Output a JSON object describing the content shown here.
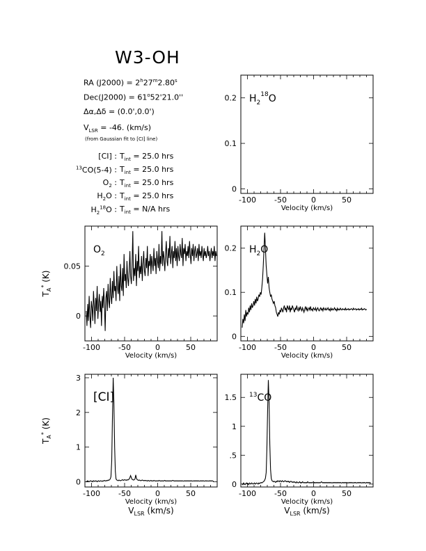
{
  "header": {
    "title": "W3-OH",
    "ra_label": "RA (J2000) = ",
    "ra_h": "2",
    "ra_m": "27",
    "ra_s": "2.80",
    "dec_label": "Dec(J2000) = ",
    "dec_deg": "61",
    "dec_rest": "52'21.0''",
    "offset_label": "Δα,Δδ = (0.0',0.0')",
    "vlsr_sym": "V",
    "vlsr_sub": "LSR",
    "vlsr_text": " = -46. (km/s)",
    "vlsr_note": "(from Gaussian fit to [CI] line)",
    "tint_rows": [
      {
        "line": "[CI]",
        "pre": "",
        "sup": "",
        "post": "",
        "sub": "",
        "value": "25.0 hrs"
      },
      {
        "line": "CO(5-4)",
        "pre": "",
        "sup": "13",
        "post": "",
        "sub": "",
        "value": "25.0 hrs"
      },
      {
        "line": "O",
        "pre": "",
        "sup": "",
        "post": "",
        "sub": "2",
        "value": "25.0 hrs"
      },
      {
        "line": "H",
        "pre": "",
        "sup": "",
        "post": "O",
        "sub": "2",
        "value": "25.0 hrs"
      },
      {
        "line": "H",
        "pre": "",
        "sup": "18",
        "post": "O",
        "sub": "2",
        "value": "N/A hrs"
      }
    ],
    "tint_sym": "T",
    "tint_sub": "int"
  },
  "chart_data": [
    {
      "id": "h218o",
      "type": "line",
      "label": "H218O",
      "xlabel": "Velocity (km/s)",
      "ylabel": "",
      "xlim": [
        -110,
        90
      ],
      "ylim": [
        -0.01,
        0.25
      ],
      "xticks": [
        -100,
        -50,
        0,
        50
      ],
      "yticks": [
        0,
        0.1,
        0.2
      ],
      "ytick_labels": [
        "0",
        "0.1",
        "0.2"
      ],
      "series": []
    },
    {
      "id": "o2",
      "type": "line",
      "label": "O2",
      "xlabel": "Velocity (km/s)",
      "ylabel": "TA* (K)",
      "xlim": [
        -110,
        90
      ],
      "ylim": [
        -0.025,
        0.09
      ],
      "xticks": [
        -100,
        -50,
        0,
        50
      ],
      "yticks": [
        0,
        0.05
      ],
      "ytick_labels": [
        "0",
        "0.05"
      ],
      "series": [
        {
          "x_start": -108,
          "x_step": 1.1,
          "values": [
            0.005,
            -0.01,
            0.012,
            -0.005,
            0.02,
            0.0,
            -0.012,
            0.015,
            0.008,
            -0.005,
            0.025,
            0.01,
            -0.008,
            0.018,
            0.005,
            0.03,
            -0.003,
            0.012,
            0.022,
            0.004,
            0.015,
            -0.01,
            0.02,
            0.008,
            0.028,
            0.012,
            -0.015,
            0.018,
            0.025,
            0.005,
            0.032,
            0.015,
            0.008,
            0.038,
            0.02,
            0.012,
            0.035,
            0.018,
            0.045,
            0.025,
            0.03,
            0.015,
            0.05,
            0.028,
            0.022,
            0.04,
            0.015,
            0.052,
            0.03,
            0.025,
            0.048,
            0.02,
            0.062,
            0.035,
            0.042,
            0.028,
            0.055,
            0.038,
            0.03,
            0.045,
            0.065,
            0.04,
            0.032,
            0.05,
            0.085,
            0.035,
            0.048,
            0.04,
            0.062,
            0.03,
            0.055,
            0.045,
            0.07,
            0.038,
            0.05,
            0.042,
            0.06,
            0.035,
            0.052,
            0.065,
            0.045,
            0.04,
            0.058,
            0.048,
            0.07,
            0.04,
            0.055,
            0.05,
            0.062,
            0.042,
            0.06,
            0.052,
            0.045,
            0.068,
            0.05,
            0.058,
            0.042,
            0.065,
            0.055,
            0.048,
            0.072,
            0.045,
            0.06,
            0.052,
            0.085,
            0.05,
            0.065,
            0.058,
            0.045,
            0.062,
            0.075,
            0.055,
            0.05,
            0.068,
            0.058,
            0.08,
            0.052,
            0.062,
            0.07,
            0.048,
            0.065,
            0.058,
            0.075,
            0.055,
            0.068,
            0.05,
            0.07,
            0.06,
            0.055,
            0.072,
            0.062,
            0.058,
            0.078,
            0.05,
            0.068,
            0.062,
            0.072,
            0.055,
            0.065,
            0.06,
            0.07,
            0.058,
            0.075,
            0.062,
            0.052,
            0.068,
            0.06,
            0.072,
            0.055,
            0.065,
            0.07,
            0.058,
            0.062,
            0.068,
            0.055,
            0.072,
            0.06,
            0.065,
            0.058,
            0.07,
            0.062,
            0.055,
            0.068,
            0.06,
            0.065,
            0.058,
            0.062,
            0.07,
            0.06,
            0.065,
            0.055,
            0.062,
            0.068,
            0.058,
            0.065,
            0.06,
            0.07,
            0.055,
            0.065,
            0.06
          ]
        }
      ]
    },
    {
      "id": "h2o",
      "type": "line",
      "label": "H2O",
      "xlabel": "Velocity (km/s)",
      "ylabel": "",
      "xlim": [
        -110,
        90
      ],
      "ylim": [
        -0.01,
        0.25
      ],
      "xticks": [
        -100,
        -50,
        0,
        50
      ],
      "yticks": [
        0,
        0.1,
        0.2
      ],
      "ytick_labels": [
        "0",
        "0.1",
        "0.2"
      ],
      "series": [
        {
          "x_start": -108,
          "x_step": 1.1,
          "values": [
            0.02,
            0.04,
            0.03,
            0.05,
            0.035,
            0.06,
            0.045,
            0.055,
            0.05,
            0.065,
            0.055,
            0.07,
            0.06,
            0.075,
            0.065,
            0.07,
            0.08,
            0.07,
            0.085,
            0.075,
            0.09,
            0.08,
            0.085,
            0.095,
            0.09,
            0.1,
            0.095,
            0.11,
            0.13,
            0.16,
            0.2,
            0.235,
            0.2,
            0.16,
            0.14,
            0.12,
            0.135,
            0.11,
            0.1,
            0.09,
            0.095,
            0.085,
            0.08,
            0.075,
            0.08,
            0.07,
            0.065,
            0.055,
            0.05,
            0.045,
            0.055,
            0.05,
            0.06,
            0.055,
            0.065,
            0.06,
            0.055,
            0.065,
            0.07,
            0.06,
            0.065,
            0.055,
            0.07,
            0.065,
            0.06,
            0.07,
            0.055,
            0.065,
            0.06,
            0.07,
            0.065,
            0.06,
            0.055,
            0.065,
            0.06,
            0.07,
            0.062,
            0.058,
            0.065,
            0.06,
            0.068,
            0.062,
            0.058,
            0.065,
            0.06,
            0.055,
            0.062,
            0.068,
            0.06,
            0.065,
            0.058,
            0.062,
            0.065,
            0.06,
            0.068,
            0.06,
            0.062,
            0.058,
            0.065,
            0.062,
            0.06,
            0.065,
            0.058,
            0.062,
            0.065,
            0.06,
            0.058,
            0.062,
            0.065,
            0.06,
            0.063,
            0.058,
            0.065,
            0.062,
            0.06,
            0.064,
            0.06,
            0.062,
            0.065,
            0.06,
            0.062,
            0.058,
            0.064,
            0.06,
            0.063,
            0.06,
            0.062,
            0.065,
            0.06,
            0.062,
            0.058,
            0.064,
            0.06,
            0.062,
            0.06,
            0.064,
            0.061,
            0.06,
            0.063,
            0.061,
            0.062,
            0.06,
            0.064,
            0.06,
            0.062,
            0.061,
            0.063,
            0.06,
            0.062,
            0.061,
            0.063,
            0.062,
            0.06,
            0.064,
            0.061,
            0.062,
            0.063,
            0.06,
            0.062,
            0.061,
            0.063,
            0.06,
            0.062,
            0.061,
            0.064,
            0.06,
            0.062,
            0.061,
            0.063,
            0.062,
            0.06,
            0.062
          ]
        }
      ]
    },
    {
      "id": "ci",
      "type": "line",
      "label": "[CI]",
      "xlabel": "Velocity (km/s)",
      "xlabel2": "VLSR (km/s)",
      "ylabel": "TA* (K)",
      "xlim": [
        -110,
        90
      ],
      "ylim": [
        -0.15,
        3.1
      ],
      "xticks": [
        -100,
        -50,
        0,
        50
      ],
      "yticks": [
        0,
        1,
        2,
        3
      ],
      "ytick_labels": [
        "0",
        "1",
        "2",
        "3"
      ],
      "series": [
        {
          "x_start": -108,
          "x_step": 1.1,
          "values": [
            0.02,
            0.0,
            0.03,
            0.01,
            0.0,
            0.02,
            0.03,
            0.01,
            0.02,
            0.0,
            0.03,
            0.02,
            0.01,
            0.03,
            0.02,
            0.0,
            0.02,
            0.03,
            0.01,
            0.02,
            0.03,
            0.02,
            0.01,
            0.03,
            0.02,
            0.04,
            0.03,
            0.02,
            0.04,
            0.03,
            0.05,
            0.04,
            0.06,
            0.08,
            0.15,
            0.6,
            1.8,
            3.0,
            2.3,
            1.0,
            0.3,
            0.08,
            0.05,
            0.04,
            0.03,
            0.05,
            0.04,
            0.03,
            0.04,
            0.05,
            0.06,
            0.04,
            0.05,
            0.06,
            0.05,
            0.04,
            0.06,
            0.05,
            0.06,
            0.08,
            0.12,
            0.18,
            0.12,
            0.07,
            0.06,
            0.05,
            0.06,
            0.08,
            0.2,
            0.1,
            0.06,
            0.05,
            0.04,
            0.05,
            0.04,
            0.03,
            0.04,
            0.05,
            0.04,
            0.03,
            0.04,
            0.03,
            0.04,
            0.03,
            0.02,
            0.04,
            0.03,
            0.02,
            0.03,
            0.04,
            0.02,
            0.03,
            0.02,
            0.04,
            0.03,
            0.02,
            0.03,
            0.02,
            0.03,
            0.02,
            0.04,
            0.03,
            0.02,
            0.03,
            0.02,
            0.03,
            0.02,
            0.03,
            0.04,
            0.02,
            0.03,
            0.02,
            0.03,
            0.02,
            0.03,
            0.02,
            0.03,
            0.02,
            0.03,
            0.04,
            0.03,
            0.02,
            0.03,
            0.02,
            0.03,
            0.02,
            0.03,
            0.02,
            0.03,
            0.02,
            0.03,
            0.02,
            0.03,
            0.02,
            0.02,
            0.03,
            0.02,
            0.03,
            0.02,
            0.03,
            0.02,
            0.03,
            0.02,
            0.03,
            0.02,
            0.03,
            0.02,
            0.02,
            0.03,
            0.02,
            0.03,
            0.02,
            0.03,
            0.02,
            0.03,
            0.02,
            0.02,
            0.03,
            0.02,
            0.03,
            0.02,
            0.03,
            0.02,
            0.02,
            0.03,
            0.02,
            0.03,
            0.02,
            0.02,
            0.03,
            0.02,
            0.03,
            0.02,
            0.03,
            0.02,
            0.02
          ]
        }
      ]
    },
    {
      "id": "13co",
      "type": "line",
      "label": "13CO",
      "xlabel": "Velocity (km/s)",
      "xlabel2": "VLSR (km/s)",
      "ylabel": "",
      "xlim": [
        -110,
        90
      ],
      "ylim": [
        -0.05,
        1.9
      ],
      "xticks": [
        -100,
        -50,
        0,
        50
      ],
      "yticks": [
        0,
        0.5,
        1,
        1.5
      ],
      "ytick_labels": [
        "0",
        ".5",
        "1",
        "1.5"
      ],
      "series": [
        {
          "x_start": -108,
          "x_step": 1.1,
          "values": [
            0.01,
            -0.01,
            0.02,
            0.0,
            -0.01,
            0.01,
            0.02,
            0.0,
            0.01,
            -0.01,
            0.02,
            0.01,
            0.0,
            0.02,
            0.01,
            0.0,
            0.01,
            0.02,
            0.0,
            0.01,
            0.02,
            0.01,
            0.0,
            0.02,
            0.01,
            0.02,
            0.03,
            0.02,
            0.03,
            0.04,
            0.05,
            0.07,
            0.1,
            0.2,
            0.6,
            1.3,
            1.8,
            1.4,
            0.7,
            0.25,
            0.1,
            0.06,
            0.05,
            0.04,
            0.05,
            0.04,
            0.03,
            0.05,
            0.04,
            0.06,
            0.05,
            0.04,
            0.06,
            0.05,
            0.04,
            0.06,
            0.05,
            0.04,
            0.05,
            0.06,
            0.05,
            0.04,
            0.05,
            0.04,
            0.05,
            0.03,
            0.04,
            0.05,
            0.04,
            0.03,
            0.04,
            0.03,
            0.04,
            0.03,
            0.02,
            0.04,
            0.03,
            0.02,
            0.03,
            0.04,
            0.02,
            0.03,
            0.02,
            0.04,
            0.03,
            0.02,
            0.03,
            0.02,
            0.03,
            0.02,
            0.04,
            0.03,
            0.02,
            0.03,
            0.02,
            0.03,
            0.02,
            0.03,
            0.04,
            0.02,
            0.03,
            0.02,
            0.03,
            0.02,
            0.03,
            0.02,
            0.03,
            0.02,
            0.03,
            0.04,
            0.03,
            0.02,
            0.03,
            0.02,
            0.03,
            0.02,
            0.03,
            0.02,
            0.03,
            0.02,
            0.03,
            0.02,
            0.03,
            0.02,
            0.02,
            0.03,
            0.02,
            0.03,
            0.02,
            0.03,
            0.02,
            0.03,
            0.02,
            0.03,
            0.02,
            0.03,
            0.02,
            0.02,
            0.03,
            0.02,
            0.03,
            0.02,
            0.03,
            0.02,
            0.03,
            0.02,
            0.02,
            0.03,
            0.02,
            0.03,
            0.02,
            0.03,
            0.02,
            0.02,
            0.03,
            0.02,
            0.03,
            0.02,
            0.02,
            0.03,
            0.02,
            0.03,
            0.02,
            0.03,
            0.02,
            0.02,
            0.03,
            0.02,
            0.03,
            0.02,
            0.02,
            0.03,
            0.02,
            0.03,
            0.02,
            0.03,
            0.02,
            0.02
          ]
        }
      ]
    }
  ]
}
